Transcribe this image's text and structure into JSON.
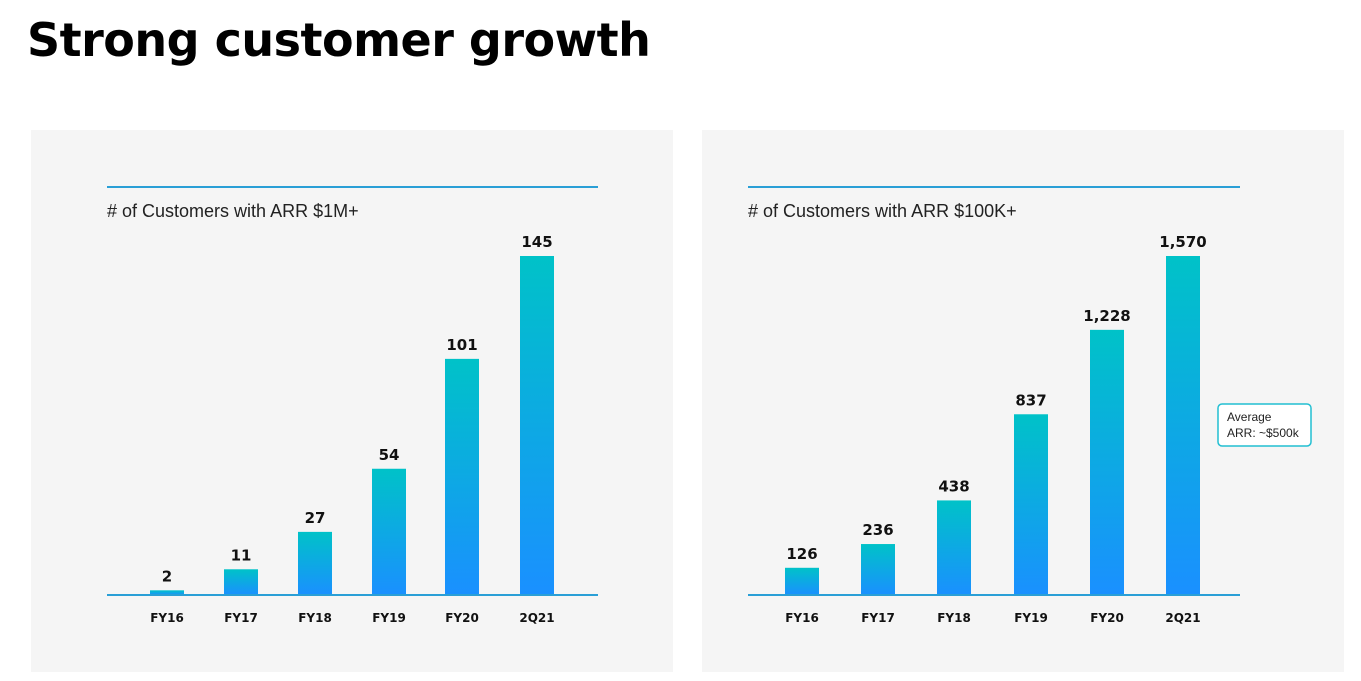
{
  "page": {
    "title": "Strong customer growth"
  },
  "colors": {
    "bar_top": "#00c2c8",
    "bar_bottom": "#1a90ff",
    "rule": "#2a9fd6",
    "panel_bg": "#f5f5f5"
  },
  "chart_data": [
    {
      "type": "bar",
      "title": "# of Customers with ARR $1M+",
      "categories": [
        "FY16",
        "FY17",
        "FY18",
        "FY19",
        "FY20",
        "2Q21"
      ],
      "values": [
        2,
        11,
        27,
        54,
        101,
        145
      ],
      "value_labels": [
        "2",
        "11",
        "27",
        "54",
        "101",
        "145"
      ],
      "ylim": [
        0,
        145
      ],
      "xlabel": "",
      "ylabel": "",
      "grid": false
    },
    {
      "type": "bar",
      "title": "# of Customers with ARR $100K+",
      "categories": [
        "FY16",
        "FY17",
        "FY18",
        "FY19",
        "FY20",
        "2Q21"
      ],
      "values": [
        126,
        236,
        438,
        837,
        1228,
        1570
      ],
      "value_labels": [
        "126",
        "236",
        "438",
        "837",
        "1,228",
        "1,570"
      ],
      "ylim": [
        0,
        1570
      ],
      "xlabel": "",
      "ylabel": "",
      "grid": false,
      "annotation": {
        "line1": "Average",
        "line2": "ARR: ~$500k"
      }
    }
  ]
}
